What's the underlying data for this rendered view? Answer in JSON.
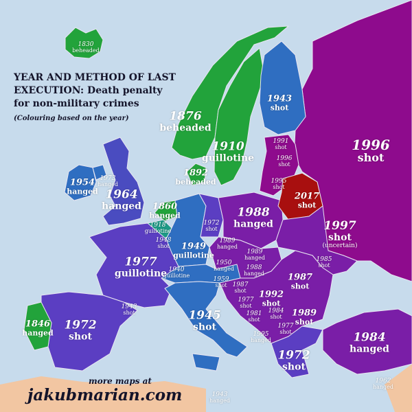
{
  "title": {
    "line1": "YEAR AND METHOD OF LAST",
    "line2_bold": "EXECUTION:",
    "line2_rest": " Death penalty",
    "line3": "for non-military crimes",
    "subtitle": "(Colouring based on the year)"
  },
  "footer": {
    "more": "more maps at",
    "site": "jakubmarian.com"
  },
  "colors": {
    "sea": "#c7dbec",
    "africa": "#f2c6a2",
    "pre_1900": "#22a33b",
    "c1900_1920": "#1d9a86",
    "c1940_1960": "#2f6ec1",
    "c1960_1980": "#5b3ec2",
    "c1980_1990": "#7a1ea7",
    "c1990s": "#8e0b8d",
    "post_2000": "#a80f0f"
  },
  "countries": [
    {
      "name": "Iceland",
      "year": "1830",
      "method": "beheaded"
    },
    {
      "name": "Norway",
      "year": "1876",
      "method": "beheaded"
    },
    {
      "name": "Sweden",
      "year": "1910",
      "method": "guillotine"
    },
    {
      "name": "Finland",
      "year": "1943",
      "method": "shot"
    },
    {
      "name": "Russia",
      "year": "1996",
      "method": "shot"
    },
    {
      "name": "Ireland",
      "year": "1954",
      "method": "hanged"
    },
    {
      "name": "Northern Ireland",
      "year": "1973",
      "method": "hanged"
    },
    {
      "name": "United Kingdom",
      "year": "1964",
      "method": "hanged"
    },
    {
      "name": "Denmark",
      "year": "1892",
      "method": "beheaded"
    },
    {
      "name": "Netherlands",
      "year": "1860",
      "method": "hanged"
    },
    {
      "name": "Belgium",
      "year": "1918",
      "method": "guillotine"
    },
    {
      "name": "Luxembourg",
      "year": "1948",
      "method": "shot"
    },
    {
      "name": "West Germany",
      "year": "1949",
      "method": "guillotine"
    },
    {
      "name": "East Germany",
      "year": "1972",
      "method": "shot"
    },
    {
      "name": "Poland",
      "year": "1988",
      "method": "hanged"
    },
    {
      "name": "Estonia",
      "year": "1991",
      "method": "shot"
    },
    {
      "name": "Latvia",
      "year": "1996",
      "method": "shot"
    },
    {
      "name": "Lithuania",
      "year": "1995",
      "method": "shot"
    },
    {
      "name": "Belarus",
      "year": "2017",
      "method": "shot"
    },
    {
      "name": "Ukraine",
      "year": "1997",
      "method": "shot",
      "note": "(uncertain)"
    },
    {
      "name": "Czech Republic",
      "year": "1989",
      "method": "hanged"
    },
    {
      "name": "Slovakia",
      "year": "1989",
      "method": "hanged"
    },
    {
      "name": "Hungary",
      "year": "1988",
      "method": "hanged"
    },
    {
      "name": "Austria",
      "year": "1950",
      "method": "hanged"
    },
    {
      "name": "Switzerland",
      "year": "1940",
      "method": "guillotine"
    },
    {
      "name": "France",
      "year": "1977",
      "method": "guillotine"
    },
    {
      "name": "Slovenia",
      "year": "1959",
      "method": "shot"
    },
    {
      "name": "Croatia",
      "year": "1987",
      "method": "shot"
    },
    {
      "name": "Bosnia",
      "year": "1977",
      "method": "shot"
    },
    {
      "name": "Serbia",
      "year": "1992",
      "method": "shot"
    },
    {
      "name": "Montenegro",
      "year": "1981",
      "method": "shot"
    },
    {
      "name": "Kosovo",
      "year": "1984",
      "method": "shot"
    },
    {
      "name": "North Macedonia",
      "year": "1977",
      "method": "shot"
    },
    {
      "name": "Albania",
      "year": "1995",
      "method": "hanged"
    },
    {
      "name": "Romania",
      "year": "1987",
      "method": "shot"
    },
    {
      "name": "Moldova",
      "year": "1985",
      "method": "shot"
    },
    {
      "name": "Bulgaria",
      "year": "1989",
      "method": "shot"
    },
    {
      "name": "Greece",
      "year": "1972",
      "method": "shot"
    },
    {
      "name": "Turkey",
      "year": "1984",
      "method": "hanged"
    },
    {
      "name": "Cyprus",
      "year": "1962",
      "method": "hanged"
    },
    {
      "name": "Italy",
      "year": "1945",
      "method": "shot"
    },
    {
      "name": "Malta",
      "year": "1943",
      "method": "hanged"
    },
    {
      "name": "Spain",
      "year": "1972",
      "method": "shot"
    },
    {
      "name": "Portugal",
      "year": "1846",
      "method": "hanged"
    },
    {
      "name": "Andorra",
      "year": "1943",
      "method": "shot"
    }
  ]
}
